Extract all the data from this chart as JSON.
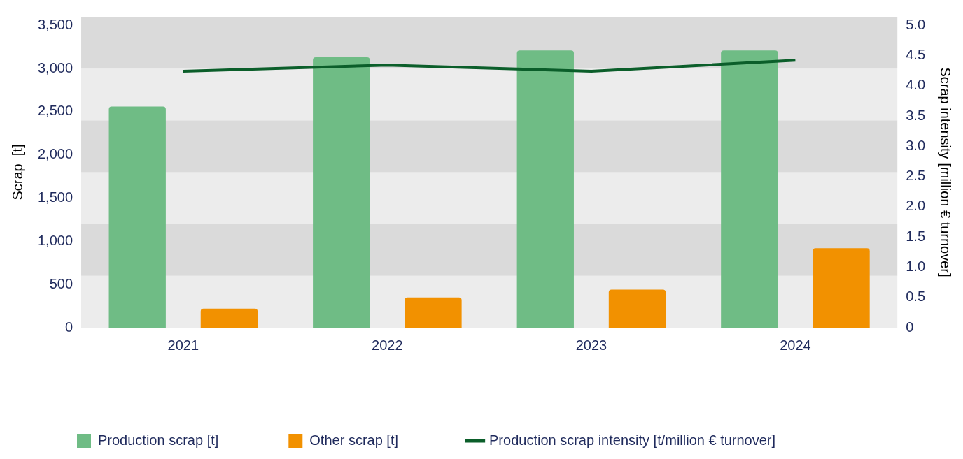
{
  "chart_data": {
    "type": "bar",
    "categories": [
      "2021",
      "2022",
      "2023",
      "2024"
    ],
    "ylabel": "Scrap  [t]",
    "y2label": "Scrap intensity [million € turnover]",
    "series": [
      {
        "name": "Production scrap [t]",
        "color": "#6fbc85",
        "values": [
          2560,
          3130,
          3210,
          3210
        ]
      },
      {
        "name": "Other scrap [t]",
        "color": "#f29100",
        "values": [
          220,
          350,
          440,
          920
        ]
      },
      {
        "name": "Production scrap intensity [t/million € turnover]",
        "type": "line",
        "axis": "y2",
        "color": "#0b5e2a",
        "values": [
          4.24,
          4.34,
          4.24,
          4.42
        ],
        "marker": "none"
      }
    ],
    "ylim": [
      0,
      3600
    ],
    "yticks": [
      0,
      500,
      {
        "value": 1000,
        "label": "1,000"
      },
      {
        "value": 1500,
        "label": "1,500"
      },
      {
        "value": 2000,
        "label": "2,000"
      },
      {
        "value": 2500,
        "label": "2,500"
      },
      {
        "value": 3000,
        "label": "3,000"
      },
      {
        "value": 3500,
        "label": "3,500"
      }
    ],
    "y2lim": [
      0,
      5.14
    ],
    "y2ticks": [
      0,
      {
        "value": 0.5,
        "label": "0.5"
      },
      {
        "value": 1,
        "label": "1.0"
      },
      {
        "value": 1.5,
        "label": "1.5"
      },
      {
        "value": 2,
        "label": "2.0"
      },
      {
        "value": 2.5,
        "label": "2.5"
      },
      {
        "value": 3,
        "label": "3.0"
      },
      {
        "value": 3.5,
        "label": "3.5"
      },
      {
        "value": 4,
        "label": "4.0"
      },
      {
        "value": 4.5,
        "label": "4.5"
      },
      {
        "value": 5,
        "label": "5.0"
      }
    ],
    "bands": [
      {
        "axis": "y",
        "from": 0,
        "to": 600,
        "color": "#ececec"
      },
      {
        "axis": "y",
        "from": 600,
        "to": 1200,
        "color": "#dadada"
      },
      {
        "axis": "y",
        "from": 1200,
        "to": 1800,
        "color": "#ececec"
      },
      {
        "axis": "y",
        "from": 1800,
        "to": 2400,
        "color": "#dadada"
      },
      {
        "axis": "y",
        "from": 2400,
        "to": 3000,
        "color": "#ececec"
      },
      {
        "axis": "y",
        "from": 3000,
        "to": 3600,
        "color": "#dadada"
      }
    ],
    "grid": false,
    "legend": "bottom"
  }
}
